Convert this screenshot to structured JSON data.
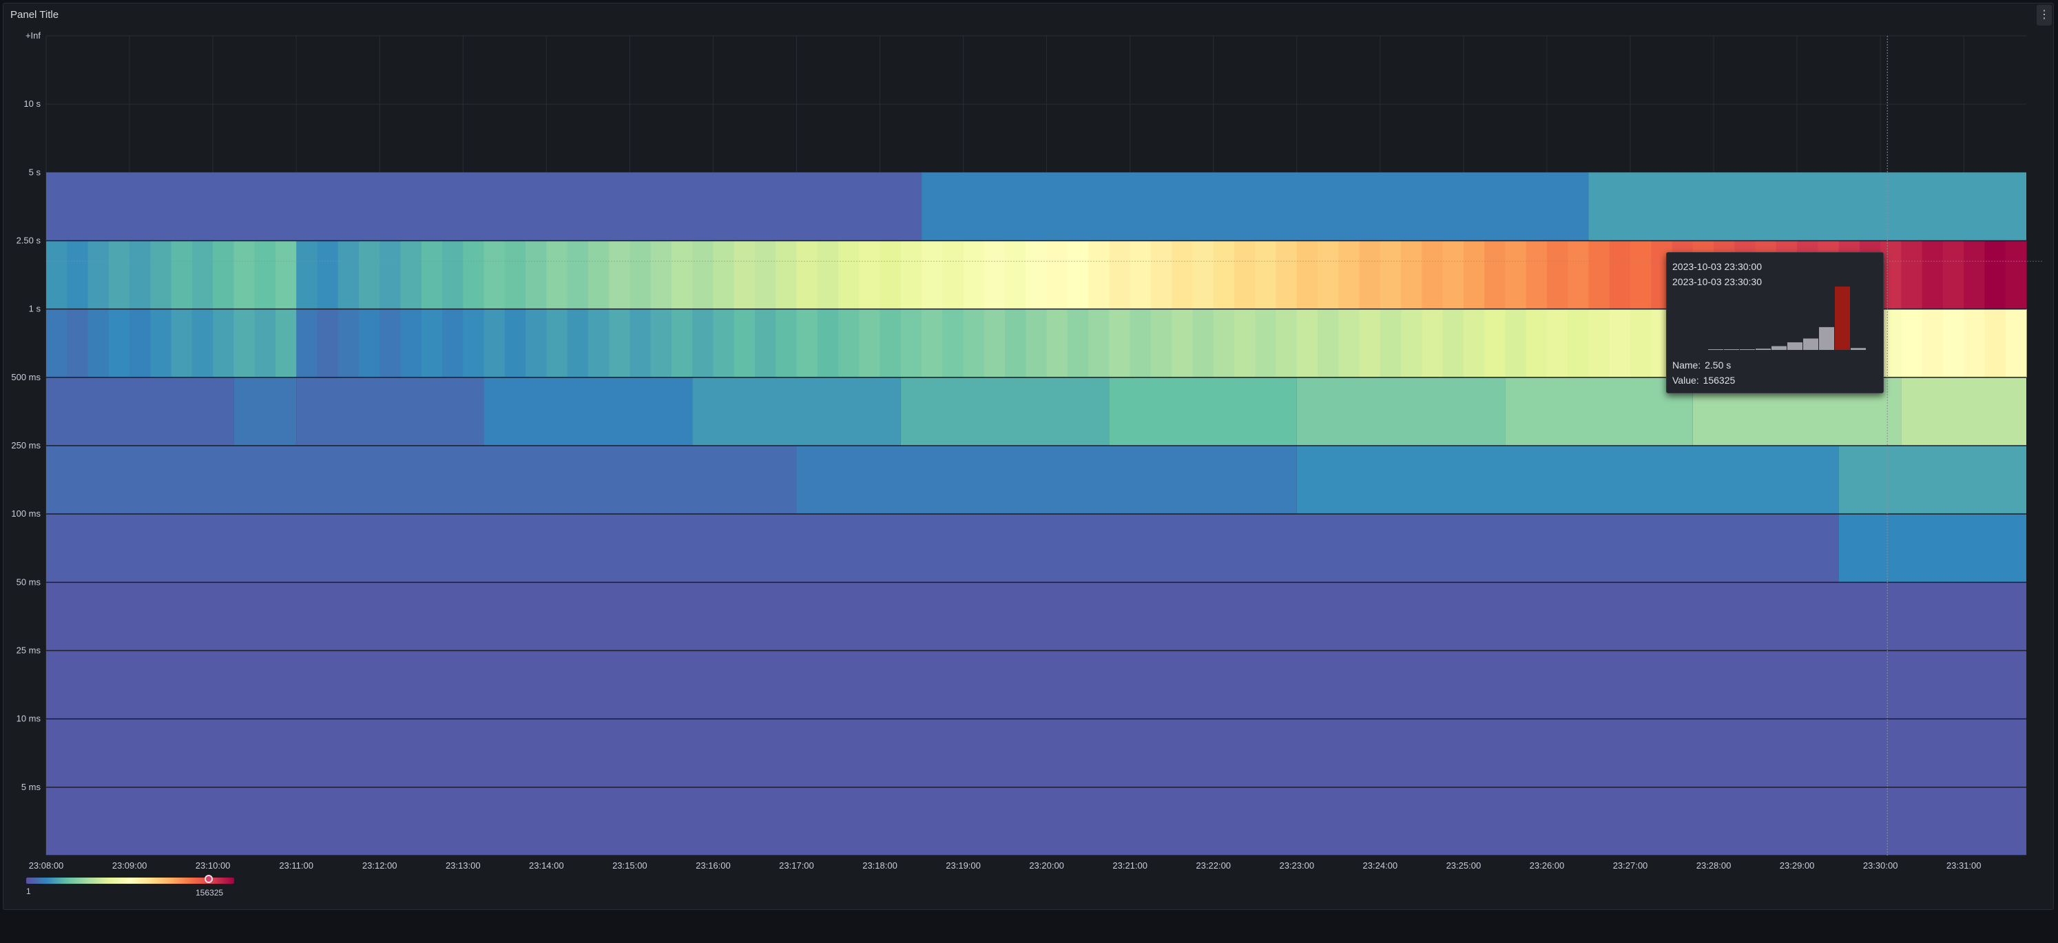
{
  "panel": {
    "title": "Panel Title",
    "menu_icon": "more-vertical-icon"
  },
  "chart_data": {
    "type": "heatmap",
    "title": "Panel Title",
    "xlabel": "",
    "ylabel": "",
    "y_buckets": [
      "5 ms",
      "10 ms",
      "25 ms",
      "50 ms",
      "100 ms",
      "250 ms",
      "500 ms",
      "1 s",
      "2.50 s",
      "5 s",
      "10 s",
      "+Inf"
    ],
    "x_ticks": [
      "23:08:00",
      "23:09:00",
      "23:10:00",
      "23:11:00",
      "23:12:00",
      "23:13:00",
      "23:14:00",
      "23:15:00",
      "23:16:00",
      "23:17:00",
      "23:18:00",
      "23:19:00",
      "23:20:00",
      "23:21:00",
      "23:22:00",
      "23:23:00",
      "23:24:00",
      "23:25:00",
      "23:26:00",
      "23:27:00",
      "23:28:00",
      "23:29:00",
      "23:30:00",
      "23:31:00"
    ],
    "time_range": [
      "23:08:00",
      "23:31:45"
    ],
    "time_step_seconds": 15,
    "color_scheme": "Spectral",
    "color_scale": {
      "min": 1,
      "max": 156325
    },
    "rows": [
      {
        "lower": "0",
        "upper": "5 ms",
        "segments": [
          {
            "from": "23:08:00",
            "to": "23:31:45",
            "value": 0.02
          }
        ]
      },
      {
        "lower": "5 ms",
        "upper": "10 ms",
        "segments": [
          {
            "from": "23:08:00",
            "to": "23:31:45",
            "value": 0.02
          }
        ]
      },
      {
        "lower": "10 ms",
        "upper": "25 ms",
        "segments": [
          {
            "from": "23:08:00",
            "to": "23:31:45",
            "value": 0.02
          }
        ]
      },
      {
        "lower": "25 ms",
        "upper": "50 ms",
        "segments": [
          {
            "from": "23:08:00",
            "to": "23:31:45",
            "value": 0.02
          }
        ]
      },
      {
        "lower": "50 ms",
        "upper": "100 ms",
        "segments": [
          {
            "from": "23:08:00",
            "to": "23:29:30",
            "value": 0.03
          },
          {
            "from": "23:29:30",
            "to": "23:31:45",
            "value": 0.1
          }
        ]
      },
      {
        "lower": "100 ms",
        "upper": "250 ms",
        "segments": [
          {
            "from": "23:08:00",
            "to": "23:17:00",
            "value": 0.05
          },
          {
            "from": "23:17:00",
            "to": "23:23:00",
            "value": 0.08
          },
          {
            "from": "23:23:00",
            "to": "23:29:30",
            "value": 0.11
          },
          {
            "from": "23:29:30",
            "to": "23:31:45",
            "value": 0.15
          }
        ]
      },
      {
        "lower": "250 ms",
        "upper": "500 ms",
        "segments": [
          {
            "from": "23:08:00",
            "to": "23:10:15",
            "value": 0.04
          },
          {
            "from": "23:10:15",
            "to": "23:11:00",
            "value": 0.07
          },
          {
            "from": "23:11:00",
            "to": "23:13:15",
            "value": 0.05
          },
          {
            "from": "23:13:15",
            "to": "23:15:45",
            "value": 0.09
          },
          {
            "from": "23:15:45",
            "to": "23:18:15",
            "value": 0.13
          },
          {
            "from": "23:18:15",
            "to": "23:20:45",
            "value": 0.17
          },
          {
            "from": "23:20:45",
            "to": "23:23:00",
            "value": 0.2
          },
          {
            "from": "23:23:00",
            "to": "23:25:30",
            "value": 0.23
          },
          {
            "from": "23:25:30",
            "to": "23:27:45",
            "value": 0.26
          },
          {
            "from": "23:27:45",
            "to": "23:30:15",
            "value": 0.29
          },
          {
            "from": "23:30:15",
            "to": "23:31:45",
            "value": 0.33
          }
        ]
      },
      {
        "lower": "500 ms",
        "upper": "1 s",
        "range": {
          "from_value": 0.05,
          "to_value": 0.52,
          "reset_at": "23:11:00"
        }
      },
      {
        "lower": "1 s",
        "upper": "2.50 s",
        "range": {
          "from_value": 0.1,
          "to_value": 1.0,
          "reset_at": "23:11:00"
        }
      },
      {
        "lower": "2.50 s",
        "upper": "5 s",
        "segments": [
          {
            "from": "23:08:00",
            "to": "23:18:30",
            "value": 0.03
          },
          {
            "from": "23:18:30",
            "to": "23:26:30",
            "value": 0.09
          },
          {
            "from": "23:26:30",
            "to": "23:31:45",
            "value": 0.14
          }
        ]
      },
      {
        "lower": "5 s",
        "upper": "10 s",
        "segments": []
      },
      {
        "lower": "10 s",
        "upper": "+Inf",
        "segments": []
      }
    ],
    "grid": true,
    "cursor_time": "23:30:05"
  },
  "tooltip": {
    "time_start": "2023-10-03 23:30:00",
    "time_end": "2023-10-03 23:30:30",
    "name_label": "Name:",
    "name_value": "2.50 s",
    "value_label": "Value:",
    "value_value": "156325",
    "histogram": [
      0.004,
      0.005,
      0.006,
      0.02,
      0.06,
      0.12,
      0.18,
      0.36,
      1.0,
      0.03
    ],
    "highlight_index": 8,
    "colors": {
      "bar": "#a0a0a6",
      "highlight": "#9b1c15"
    }
  },
  "legend": {
    "min_label": "1",
    "max_label": "156325",
    "marker_value": 156325
  },
  "colors": {
    "panel_bg": "#181b1f",
    "page_bg": "#111217",
    "grid": "#2a2d33",
    "text": "#ccccdc"
  }
}
